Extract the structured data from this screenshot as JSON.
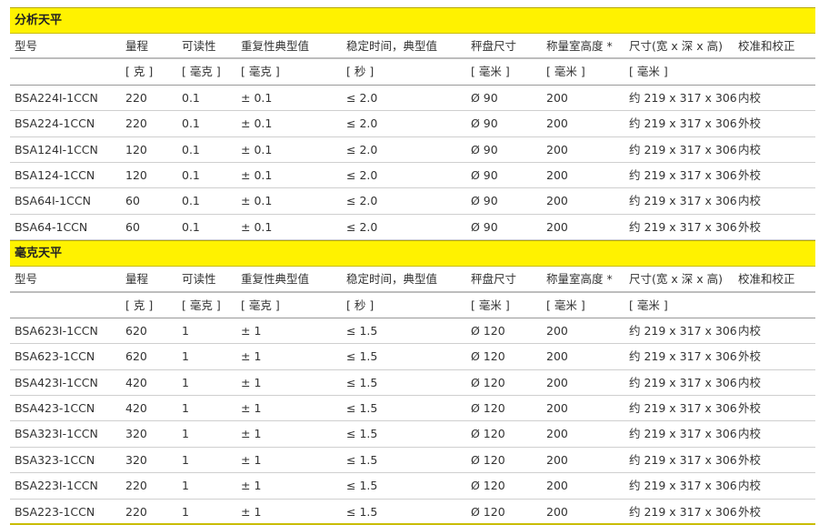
{
  "headers": [
    "型号",
    "量程",
    "可读性",
    "重复性典型值",
    "稳定时间，典型值",
    "秤盘尺寸",
    "称量室高度 *",
    "尺寸(宽 x 深 x 高)",
    "校准和校正"
  ],
  "units": [
    "",
    "[ 克 ]",
    "[ 毫克 ]",
    "[ 毫克 ]",
    "[ 秒 ]",
    "[ 毫米 ]",
    "[ 毫米 ]",
    "[ 毫米 ]",
    ""
  ],
  "sections": [
    {
      "title": "分析天平",
      "rows": [
        [
          "BSA224I-1CCN",
          "220",
          "0.1",
          "± 0.1",
          "≤ 2.0",
          "Ø 90",
          "200",
          "约 219 x 317 x 306",
          "内校"
        ],
        [
          "BSA224-1CCN",
          "220",
          "0.1",
          "± 0.1",
          "≤ 2.0",
          "Ø 90",
          "200",
          "约 219 x 317 x 306",
          "外校"
        ],
        [
          "BSA124I-1CCN",
          "120",
          "0.1",
          "± 0.1",
          "≤ 2.0",
          "Ø 90",
          "200",
          "约 219 x 317 x 306",
          "内校"
        ],
        [
          "BSA124-1CCN",
          "120",
          "0.1",
          "± 0.1",
          "≤ 2.0",
          "Ø 90",
          "200",
          "约 219 x 317 x 306",
          "外校"
        ],
        [
          "BSA64I-1CCN",
          "60",
          "0.1",
          "± 0.1",
          "≤ 2.0",
          "Ø 90",
          "200",
          "约 219 x 317 x 306",
          "内校"
        ],
        [
          "BSA64-1CCN",
          "60",
          "0.1",
          "± 0.1",
          "≤ 2.0",
          "Ø 90",
          "200",
          "约 219 x 317 x 306",
          "外校"
        ]
      ]
    },
    {
      "title": "毫克天平",
      "rows": [
        [
          "BSA623I-1CCN",
          "620",
          "1",
          "± 1",
          "≤ 1.5",
          "Ø 120",
          "200",
          "约 219 x 317 x 306",
          "内校"
        ],
        [
          "BSA623-1CCN",
          "620",
          "1",
          "± 1",
          "≤ 1.5",
          "Ø 120",
          "200",
          "约 219 x 317 x 306",
          "外校"
        ],
        [
          "BSA423I-1CCN",
          "420",
          "1",
          "± 1",
          "≤ 1.5",
          "Ø 120",
          "200",
          "约 219 x 317 x 306",
          "内校"
        ],
        [
          "BSA423-1CCN",
          "420",
          "1",
          "± 1",
          "≤ 1.5",
          "Ø 120",
          "200",
          "约 219 x 317 x 306",
          "外校"
        ],
        [
          "BSA323I-1CCN",
          "320",
          "1",
          "± 1",
          "≤ 1.5",
          "Ø 120",
          "200",
          "约 219 x 317 x 306",
          "内校"
        ],
        [
          "BSA323-1CCN",
          "320",
          "1",
          "± 1",
          "≤ 1.5",
          "Ø 120",
          "200",
          "约 219 x 317 x 306",
          "外校"
        ],
        [
          "BSA223I-1CCN",
          "220",
          "1",
          "± 1",
          "≤ 1.5",
          "Ø 120",
          "200",
          "约 219 x 317 x 306",
          "内校"
        ],
        [
          "BSA223-1CCN",
          "220",
          "1",
          "± 1",
          "≤ 1.5",
          "Ø 120",
          "200",
          "约 219 x 317 x 306",
          "外校"
        ]
      ]
    }
  ]
}
